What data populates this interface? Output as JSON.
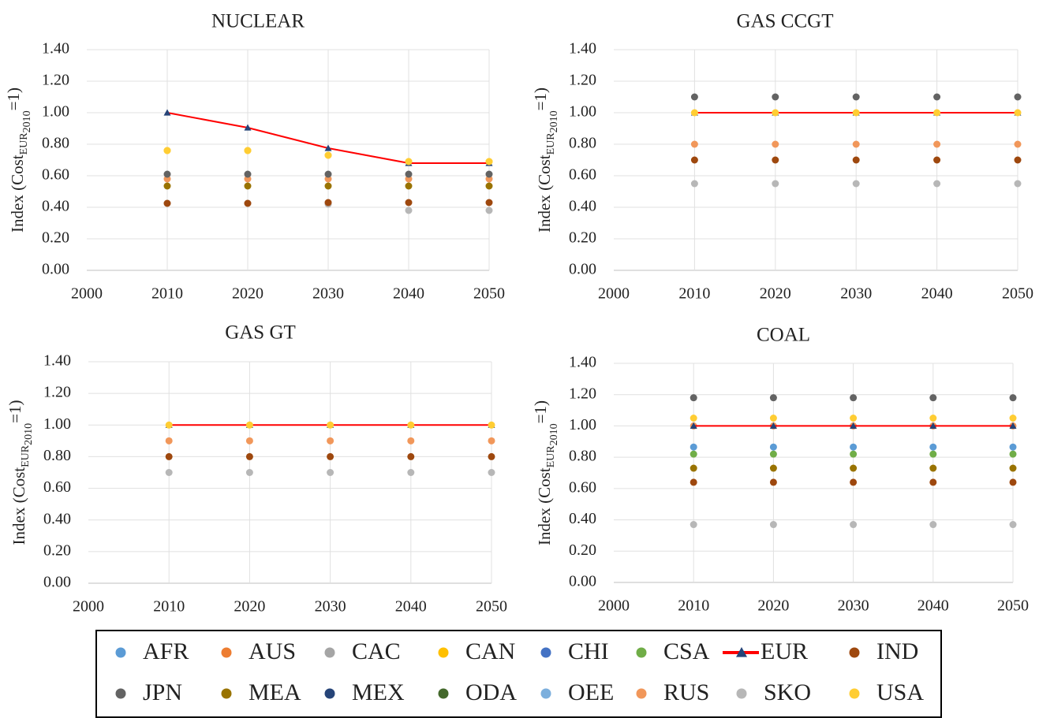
{
  "chart_data": [
    {
      "type": "scatter",
      "title": "NUCLEAR",
      "ylabel": [
        "Index (Cost",
        "EUR",
        "2010",
        "=1)"
      ],
      "x": [
        2010,
        2020,
        2030,
        2040,
        2050
      ],
      "xlim": [
        2000,
        2050
      ],
      "xticks": [
        2000,
        2010,
        2020,
        2030,
        2040,
        2050
      ],
      "ylim": [
        0,
        1.4
      ],
      "yticks": [
        {
          "value": 0,
          "label": "0.00"
        },
        {
          "value": 0.2,
          "label": "0.20"
        },
        {
          "value": 0.4,
          "label": "0.40"
        },
        {
          "value": 0.6,
          "label": "0.60"
        },
        {
          "value": 0.8,
          "label": "0.80"
        },
        {
          "value": 1,
          "label": "1.00"
        },
        {
          "value": 1.2,
          "label": "1.20"
        },
        {
          "value": 1.4,
          "label": "1.40"
        }
      ],
      "grid": true,
      "series": [
        {
          "name": "SKO",
          "color": "#b7b7b7",
          "values": [
            0.425,
            0.425,
            0.42,
            0.38,
            0.38
          ]
        },
        {
          "name": "IND",
          "color": "#9e480e",
          "values": [
            0.425,
            0.425,
            0.43,
            0.43,
            0.43
          ]
        },
        {
          "name": "MEA",
          "color": "#997300",
          "values": [
            0.535,
            0.535,
            0.535,
            0.535,
            0.535
          ]
        },
        {
          "name": "RUS",
          "color": "#f1975a",
          "values": [
            0.58,
            0.58,
            0.58,
            0.58,
            0.58
          ]
        },
        {
          "name": "JPN",
          "color": "#636363",
          "values": [
            0.61,
            0.61,
            0.61,
            0.61,
            0.61
          ]
        },
        {
          "name": "CAN",
          "color": "#ffc000",
          "values": [
            0.76,
            0.76,
            0.73,
            0.69,
            0.69
          ]
        },
        {
          "name": "EUR",
          "color": "#ff0000",
          "marker_color": "#264478",
          "line": true,
          "values": [
            1.0,
            0.905,
            0.775,
            0.68,
            0.68
          ]
        },
        {
          "name": "USA",
          "color": "#ffcd33",
          "values": [
            0.76,
            0.76,
            0.73,
            0.69,
            0.69
          ]
        }
      ]
    },
    {
      "type": "scatter",
      "title": "GAS CCGT",
      "ylabel": [
        "Index (Cost",
        "EUR",
        "2010",
        "=1)"
      ],
      "x": [
        2010,
        2020,
        2030,
        2040,
        2050
      ],
      "xlim": [
        2000,
        2050
      ],
      "xticks": [
        2000,
        2010,
        2020,
        2030,
        2040,
        2050
      ],
      "ylim": [
        0,
        1.4
      ],
      "yticks": [
        {
          "value": 0,
          "label": "0.00"
        },
        {
          "value": 0.2,
          "label": "0.20"
        },
        {
          "value": 0.4,
          "label": "0.40"
        },
        {
          "value": 0.6,
          "label": "0.60"
        },
        {
          "value": 0.8,
          "label": "0.80"
        },
        {
          "value": 1,
          "label": "1.00"
        },
        {
          "value": 1.2,
          "label": "1.20"
        },
        {
          "value": 1.4,
          "label": "1.40"
        }
      ],
      "grid": true,
      "series": [
        {
          "name": "SKO",
          "color": "#b7b7b7",
          "values": [
            0.55,
            0.55,
            0.55,
            0.55,
            0.55
          ]
        },
        {
          "name": "IND",
          "color": "#9e480e",
          "values": [
            0.7,
            0.7,
            0.7,
            0.7,
            0.7
          ]
        },
        {
          "name": "RUS",
          "color": "#f1975a",
          "values": [
            0.8,
            0.8,
            0.8,
            0.8,
            0.8
          ]
        },
        {
          "name": "JPN",
          "color": "#636363",
          "values": [
            1.1,
            1.1,
            1.1,
            1.1,
            1.1
          ]
        },
        {
          "name": "EUR",
          "color": "#ff0000",
          "marker_color": "#264478",
          "line": true,
          "values": [
            1.0,
            1.0,
            1.0,
            1.0,
            1.0
          ]
        },
        {
          "name": "USA",
          "color": "#ffcd33",
          "values": [
            1.0,
            1.0,
            1.0,
            1.0,
            1.0
          ]
        }
      ]
    },
    {
      "type": "scatter",
      "title": "GAS GT",
      "ylabel": [
        "Index (Cost",
        "EUR",
        "2010",
        "=1)"
      ],
      "x": [
        2010,
        2020,
        2030,
        2040,
        2050
      ],
      "xlim": [
        2000,
        2050
      ],
      "xticks": [
        2000,
        2010,
        2020,
        2030,
        2040,
        2050
      ],
      "ylim": [
        0,
        1.4
      ],
      "yticks": [
        {
          "value": 0,
          "label": "0.00"
        },
        {
          "value": 0.2,
          "label": "0.20"
        },
        {
          "value": 0.4,
          "label": "0.40"
        },
        {
          "value": 0.6,
          "label": "0.60"
        },
        {
          "value": 0.8,
          "label": "0.80"
        },
        {
          "value": 1,
          "label": "1.00"
        },
        {
          "value": 1.2,
          "label": "1.20"
        },
        {
          "value": 1.4,
          "label": "1.40"
        }
      ],
      "grid": true,
      "series": [
        {
          "name": "SKO",
          "color": "#b7b7b7",
          "values": [
            0.7,
            0.7,
            0.7,
            0.7,
            0.7
          ]
        },
        {
          "name": "IND",
          "color": "#9e480e",
          "values": [
            0.8,
            0.8,
            0.8,
            0.8,
            0.8
          ]
        },
        {
          "name": "RUS",
          "color": "#f1975a",
          "values": [
            0.9,
            0.9,
            0.9,
            0.9,
            0.9
          ]
        },
        {
          "name": "EUR",
          "color": "#ff0000",
          "marker_color": "#264478",
          "line": true,
          "values": [
            1.0,
            1.0,
            1.0,
            1.0,
            1.0
          ]
        },
        {
          "name": "USA",
          "color": "#ffcd33",
          "values": [
            1.0,
            1.0,
            1.0,
            1.0,
            1.0
          ]
        }
      ]
    },
    {
      "type": "scatter",
      "title": "COAL",
      "ylabel": [
        "Index (Cost",
        "EUR",
        "2010",
        "=1)"
      ],
      "x": [
        2010,
        2020,
        2030,
        2040,
        2050
      ],
      "xlim": [
        2000,
        2050
      ],
      "xticks": [
        2000,
        2010,
        2020,
        2030,
        2040,
        2050
      ],
      "ylim": [
        0,
        1.4
      ],
      "yticks": [
        {
          "value": 0,
          "label": "0.00"
        },
        {
          "value": 0.2,
          "label": "0.20"
        },
        {
          "value": 0.4,
          "label": "0.40"
        },
        {
          "value": 0.6,
          "label": "0.60"
        },
        {
          "value": 0.8,
          "label": "0.80"
        },
        {
          "value": 1,
          "label": "1.00"
        },
        {
          "value": 1.2,
          "label": "1.20"
        },
        {
          "value": 1.4,
          "label": "1.40"
        }
      ],
      "grid": true,
      "series": [
        {
          "name": "SKO",
          "color": "#b7b7b7",
          "values": [
            0.37,
            0.37,
            0.37,
            0.37,
            0.37
          ]
        },
        {
          "name": "IND",
          "color": "#9e480e",
          "values": [
            0.64,
            0.64,
            0.64,
            0.64,
            0.64
          ]
        },
        {
          "name": "MEA",
          "color": "#997300",
          "values": [
            0.73,
            0.73,
            0.73,
            0.73,
            0.73
          ]
        },
        {
          "name": "CSA",
          "color": "#70ad47",
          "values": [
            0.82,
            0.82,
            0.82,
            0.82,
            0.82
          ]
        },
        {
          "name": "AFR",
          "color": "#5b9bd5",
          "values": [
            0.865,
            0.865,
            0.865,
            0.865,
            0.865
          ]
        },
        {
          "name": "RUS",
          "color": "#f1975a",
          "values": [
            1.0,
            1.0,
            1.0,
            1.0,
            1.0
          ]
        },
        {
          "name": "JPN",
          "color": "#636363",
          "values": [
            1.18,
            1.18,
            1.18,
            1.18,
            1.18
          ]
        },
        {
          "name": "EUR",
          "color": "#ff0000",
          "marker_color": "#264478",
          "line": true,
          "values": [
            1.0,
            1.0,
            1.0,
            1.0,
            1.0
          ]
        },
        {
          "name": "USA",
          "color": "#ffcd33",
          "values": [
            1.05,
            1.05,
            1.05,
            1.05,
            1.05
          ]
        }
      ]
    }
  ],
  "legend": {
    "series": [
      {
        "name": "AFR",
        "color": "#5b9bd5"
      },
      {
        "name": "AUS",
        "color": "#ed7d31"
      },
      {
        "name": "CAC",
        "color": "#a5a5a5"
      },
      {
        "name": "CAN",
        "color": "#ffc000"
      },
      {
        "name": "CHI",
        "color": "#4472c4"
      },
      {
        "name": "CSA",
        "color": "#70ad47"
      },
      {
        "name": "EUR",
        "color": "#ff0000",
        "marker_color": "#264478",
        "line": true
      },
      {
        "name": "IND",
        "color": "#9e480e"
      },
      {
        "name": "JPN",
        "color": "#636363"
      },
      {
        "name": "MEA",
        "color": "#997300"
      },
      {
        "name": "MEX",
        "color": "#264478"
      },
      {
        "name": "ODA",
        "color": "#43682b"
      },
      {
        "name": "OEE",
        "color": "#7cafdd"
      },
      {
        "name": "RUS",
        "color": "#f1975a"
      },
      {
        "name": "SKO",
        "color": "#b7b7b7"
      },
      {
        "name": "USA",
        "color": "#ffcd33"
      }
    ]
  }
}
